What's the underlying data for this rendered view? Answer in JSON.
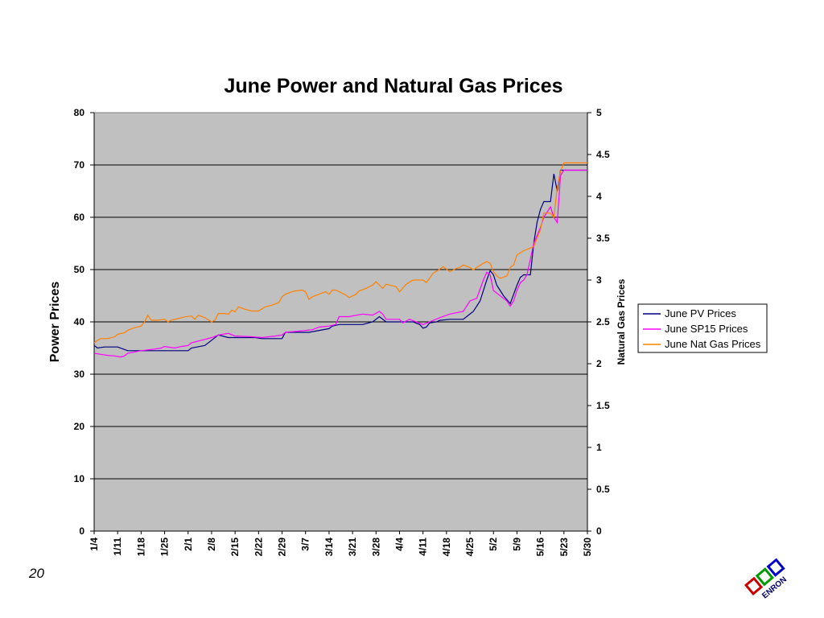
{
  "page": {
    "number": "20"
  },
  "logo": {
    "text": "ENRON"
  },
  "chart_data": {
    "type": "line",
    "title": "June Power and Natural Gas Prices",
    "ylabel": "Power Prices",
    "y2label": "Natural Gas Prices",
    "ylim": [
      0,
      80
    ],
    "y2lim": [
      0,
      5
    ],
    "yticks": [
      "0",
      "10",
      "20",
      "30",
      "40",
      "50",
      "60",
      "70",
      "80"
    ],
    "y2ticks": [
      "0",
      "0.5",
      "1",
      "1.5",
      "2",
      "2.5",
      "3",
      "3.5",
      "4",
      "4.5",
      "5"
    ],
    "x_tick_labels": [
      "1/4",
      "1/11",
      "1/18",
      "1/25",
      "2/1",
      "2/8",
      "2/15",
      "2/22",
      "2/29",
      "3/7",
      "3/14",
      "3/21",
      "3/28",
      "4/4",
      "4/11",
      "4/18",
      "4/25",
      "5/2",
      "5/9",
      "5/16",
      "5/23",
      "5/30"
    ],
    "x_range_days": [
      0,
      147
    ],
    "x_start": "1/4",
    "grid": "horizontal",
    "background": "#c0c0c0",
    "legend_position": "right",
    "series": [
      {
        "name": "June PV Prices",
        "axis": "left",
        "color": "#000080",
        "points": [
          [
            0,
            35.5
          ],
          [
            1,
            35
          ],
          [
            3,
            35.2
          ],
          [
            7,
            35.2
          ],
          [
            10,
            34.5
          ],
          [
            14,
            34.5
          ],
          [
            20,
            34.5
          ],
          [
            28,
            34.5
          ],
          [
            29,
            35
          ],
          [
            33,
            35.5
          ],
          [
            35,
            36.5
          ],
          [
            37,
            37.5
          ],
          [
            40,
            37
          ],
          [
            48,
            37
          ],
          [
            50,
            36.8
          ],
          [
            56,
            36.8
          ],
          [
            57,
            38
          ],
          [
            64,
            38
          ],
          [
            70,
            38.7
          ],
          [
            71,
            39.2
          ],
          [
            73,
            39.5
          ],
          [
            77,
            39.5
          ],
          [
            80,
            39.5
          ],
          [
            83,
            40
          ],
          [
            85,
            41
          ],
          [
            87,
            40
          ],
          [
            95,
            40
          ],
          [
            97,
            39.5
          ],
          [
            98,
            38.8
          ],
          [
            99,
            39
          ],
          [
            100,
            39.8
          ],
          [
            102,
            40
          ],
          [
            103,
            40.3
          ],
          [
            106,
            40.5
          ],
          [
            110,
            40.5
          ],
          [
            111,
            41
          ],
          [
            113,
            42
          ],
          [
            114,
            43
          ],
          [
            115,
            44
          ],
          [
            117,
            48
          ],
          [
            118,
            49.8
          ],
          [
            119,
            49
          ],
          [
            120,
            47
          ],
          [
            121,
            46
          ],
          [
            122,
            45
          ],
          [
            124,
            43.5
          ],
          [
            126,
            47
          ],
          [
            127,
            48.5
          ],
          [
            128,
            49
          ],
          [
            130,
            49
          ],
          [
            131,
            55
          ],
          [
            132,
            59
          ],
          [
            133,
            61.5
          ],
          [
            134,
            63
          ],
          [
            135,
            63
          ],
          [
            136,
            63
          ],
          [
            137,
            68.3
          ],
          [
            138,
            65
          ],
          [
            139,
            69
          ],
          [
            140,
            69
          ],
          [
            147,
            69
          ]
        ]
      },
      {
        "name": "June SP15 Prices",
        "axis": "left",
        "color": "#ff00ff",
        "points": [
          [
            0,
            34
          ],
          [
            2,
            33.8
          ],
          [
            4,
            33.6
          ],
          [
            6,
            33.5
          ],
          [
            8,
            33.3
          ],
          [
            9,
            33.5
          ],
          [
            10,
            34
          ],
          [
            14,
            34.5
          ],
          [
            18,
            34.8
          ],
          [
            20,
            35
          ],
          [
            21,
            35.3
          ],
          [
            24,
            35
          ],
          [
            26,
            35.3
          ],
          [
            28,
            35.5
          ],
          [
            29,
            36
          ],
          [
            32,
            36.5
          ],
          [
            35,
            37
          ],
          [
            37,
            37.5
          ],
          [
            40,
            37.8
          ],
          [
            42,
            37.3
          ],
          [
            46,
            37.2
          ],
          [
            50,
            37
          ],
          [
            54,
            37.3
          ],
          [
            56,
            37.5
          ],
          [
            57,
            38
          ],
          [
            62,
            38.3
          ],
          [
            65,
            38.5
          ],
          [
            67,
            39
          ],
          [
            70,
            39.2
          ],
          [
            72,
            39.5
          ],
          [
            73,
            41
          ],
          [
            76,
            41
          ],
          [
            80,
            41.5
          ],
          [
            83,
            41.3
          ],
          [
            85,
            42
          ],
          [
            86,
            41.5
          ],
          [
            87,
            40.5
          ],
          [
            91,
            40.5
          ],
          [
            92,
            39.8
          ],
          [
            94,
            40.5
          ],
          [
            96,
            40
          ],
          [
            98,
            39.5
          ],
          [
            100,
            40
          ],
          [
            103,
            40.8
          ],
          [
            106,
            41.5
          ],
          [
            110,
            42
          ],
          [
            112,
            44
          ],
          [
            114,
            44.5
          ],
          [
            116,
            48
          ],
          [
            117,
            49.5
          ],
          [
            118,
            49
          ],
          [
            119,
            46
          ],
          [
            120,
            45.5
          ],
          [
            123,
            44
          ],
          [
            124,
            43
          ],
          [
            125,
            44
          ],
          [
            126,
            46
          ],
          [
            127,
            47.5
          ],
          [
            128,
            48
          ],
          [
            129,
            49
          ],
          [
            130,
            52
          ],
          [
            131,
            55
          ],
          [
            133,
            58
          ],
          [
            134,
            60
          ],
          [
            135,
            61
          ],
          [
            136,
            62
          ],
          [
            137,
            60
          ],
          [
            138,
            59
          ],
          [
            139,
            68
          ],
          [
            140,
            69
          ],
          [
            147,
            69
          ]
        ]
      },
      {
        "name": "June Nat Gas Prices",
        "axis": "right",
        "color": "#ff8000",
        "points": [
          [
            0,
            2.25
          ],
          [
            1,
            2.28
          ],
          [
            2,
            2.3
          ],
          [
            4,
            2.3
          ],
          [
            6,
            2.32
          ],
          [
            7,
            2.35
          ],
          [
            9,
            2.37
          ],
          [
            10,
            2.4
          ],
          [
            12,
            2.43
          ],
          [
            14,
            2.45
          ],
          [
            15,
            2.5
          ],
          [
            16,
            2.58
          ],
          [
            17,
            2.52
          ],
          [
            19,
            2.52
          ],
          [
            21,
            2.53
          ],
          [
            22,
            2.5
          ],
          [
            23,
            2.52
          ],
          [
            25,
            2.54
          ],
          [
            27,
            2.56
          ],
          [
            29,
            2.57
          ],
          [
            30,
            2.53
          ],
          [
            31,
            2.58
          ],
          [
            33,
            2.55
          ],
          [
            35,
            2.5
          ],
          [
            36,
            2.52
          ],
          [
            37,
            2.6
          ],
          [
            39,
            2.6
          ],
          [
            40,
            2.59
          ],
          [
            41,
            2.64
          ],
          [
            42,
            2.62
          ],
          [
            43,
            2.68
          ],
          [
            45,
            2.65
          ],
          [
            47,
            2.63
          ],
          [
            49,
            2.63
          ],
          [
            51,
            2.68
          ],
          [
            53,
            2.7
          ],
          [
            55,
            2.73
          ],
          [
            56,
            2.8
          ],
          [
            57,
            2.83
          ],
          [
            59,
            2.86
          ],
          [
            60,
            2.87
          ],
          [
            62,
            2.88
          ],
          [
            63,
            2.86
          ],
          [
            64,
            2.77
          ],
          [
            65,
            2.8
          ],
          [
            67,
            2.83
          ],
          [
            69,
            2.86
          ],
          [
            70,
            2.83
          ],
          [
            71,
            2.88
          ],
          [
            72,
            2.88
          ],
          [
            74,
            2.84
          ],
          [
            75,
            2.82
          ],
          [
            76,
            2.79
          ],
          [
            78,
            2.83
          ],
          [
            79,
            2.87
          ],
          [
            81,
            2.9
          ],
          [
            83,
            2.94
          ],
          [
            84,
            2.98
          ],
          [
            86,
            2.9
          ],
          [
            87,
            2.95
          ],
          [
            89,
            2.93
          ],
          [
            90,
            2.92
          ],
          [
            91,
            2.86
          ],
          [
            93,
            2.95
          ],
          [
            95,
            3
          ],
          [
            98,
            3
          ],
          [
            99,
            2.97
          ],
          [
            101,
            3.08
          ],
          [
            103,
            3.13
          ],
          [
            104,
            3.16
          ],
          [
            106,
            3.1
          ],
          [
            108,
            3.14
          ],
          [
            109,
            3.15
          ],
          [
            110,
            3.18
          ],
          [
            112,
            3.15
          ],
          [
            113,
            3.12
          ],
          [
            114,
            3.15
          ],
          [
            116,
            3.2
          ],
          [
            117,
            3.22
          ],
          [
            118,
            3.2
          ],
          [
            119,
            3.1
          ],
          [
            120,
            3.05
          ],
          [
            121,
            3.02
          ],
          [
            123,
            3.05
          ],
          [
            124,
            3.15
          ],
          [
            125,
            3.18
          ],
          [
            126,
            3.3
          ],
          [
            128,
            3.35
          ],
          [
            131,
            3.4
          ],
          [
            132,
            3.5
          ],
          [
            133,
            3.6
          ],
          [
            134,
            3.8
          ],
          [
            136,
            3.8
          ],
          [
            137,
            3.75
          ],
          [
            138,
            4.1
          ],
          [
            139,
            4.3
          ],
          [
            140,
            4.4
          ],
          [
            147,
            4.4
          ]
        ]
      }
    ]
  }
}
